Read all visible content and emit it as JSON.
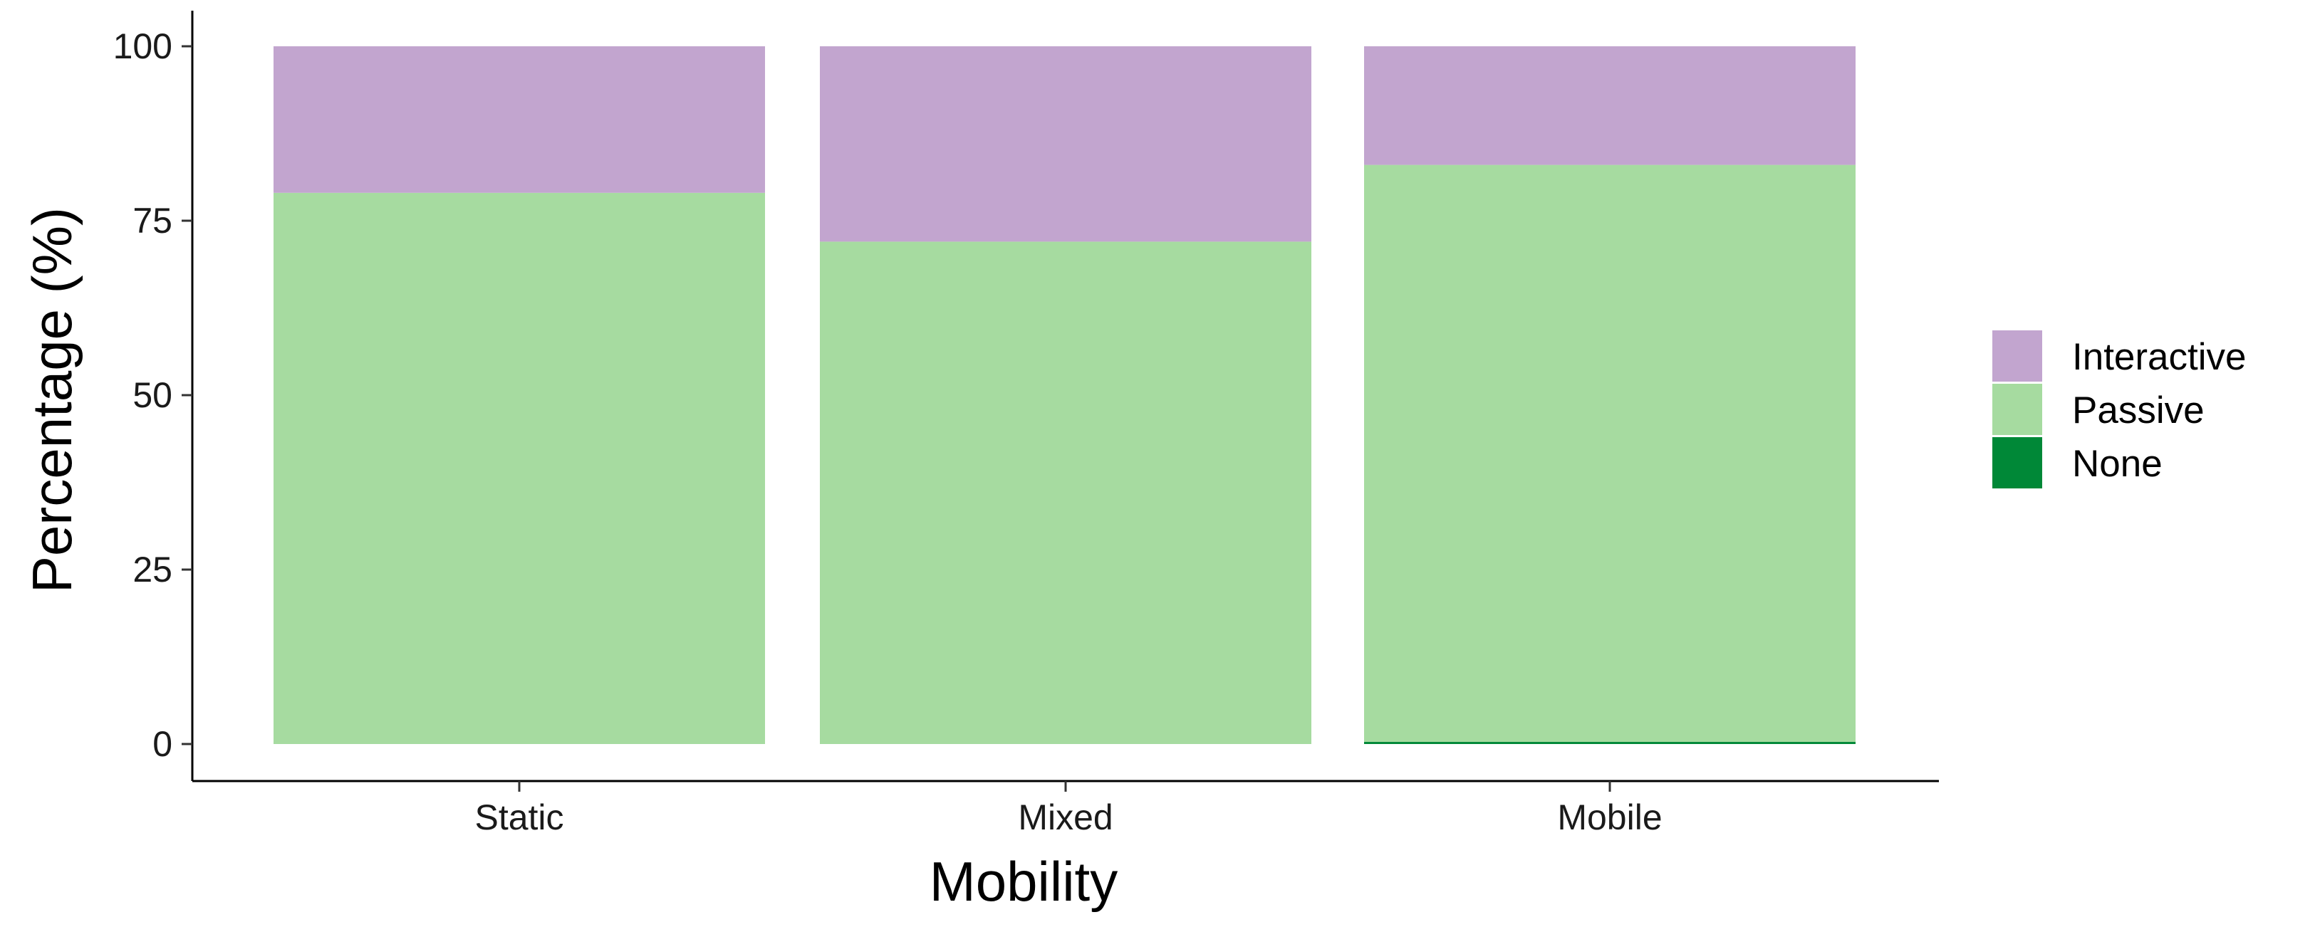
{
  "chart_data": {
    "type": "bar",
    "stacked": true,
    "categories": [
      "Static",
      "Mixed",
      "Mobile"
    ],
    "series": [
      {
        "name": "None",
        "values": [
          0,
          0,
          0.3
        ],
        "color": "#008837"
      },
      {
        "name": "Passive",
        "values": [
          79,
          72,
          82.7
        ],
        "color": "#a6dba0"
      },
      {
        "name": "Interactive",
        "values": [
          21,
          28,
          17
        ],
        "color": "#c2a5cf"
      }
    ],
    "legend_order": [
      "Interactive",
      "Passive",
      "None"
    ],
    "xlabel": "Mobility",
    "ylabel": "Percentage (%)",
    "ylim": [
      0,
      100
    ],
    "yticks": [
      0,
      25,
      50,
      75,
      100
    ],
    "grid": false,
    "legend_position": "right"
  }
}
